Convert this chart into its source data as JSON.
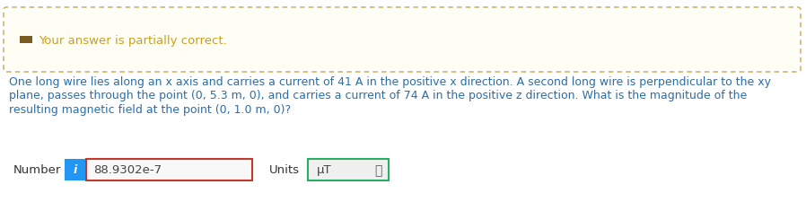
{
  "background_color": "#ffffff",
  "banner_bg": "#fffef5",
  "banner_border_color": "#c8a84b",
  "banner_icon_color": "#7a5c1e",
  "banner_text": "Your answer is partially correct.",
  "banner_text_color": "#c8a020",
  "question_text_line1": "One long wire lies along an x axis and carries a current of 41 A in the positive x direction. A second long wire is perpendicular to the xy",
  "question_text_line2": "plane, passes through the point (0, 5.3 m, 0), and carries a current of 74 A in the positive z direction. What is the magnitude of the",
  "question_text_line3": "resulting magnetic field at the point (0, 1.0 m, 0)?",
  "question_text_color": "#2e6da4",
  "number_label": "Number",
  "number_label_color": "#333333",
  "info_icon_bg": "#2196f3",
  "info_icon_text": "i",
  "answer_value": "88.9302e-7",
  "answer_box_border": "#c0392b",
  "answer_text_color": "#444444",
  "answer_bg": "#f8f8f8",
  "units_label": "Units",
  "units_label_color": "#333333",
  "units_value": "μT",
  "units_box_border": "#27ae60",
  "units_bg": "#f0f0f0",
  "font_size_question": 9.0,
  "font_size_banner": 9.5,
  "font_size_number": 9.5
}
